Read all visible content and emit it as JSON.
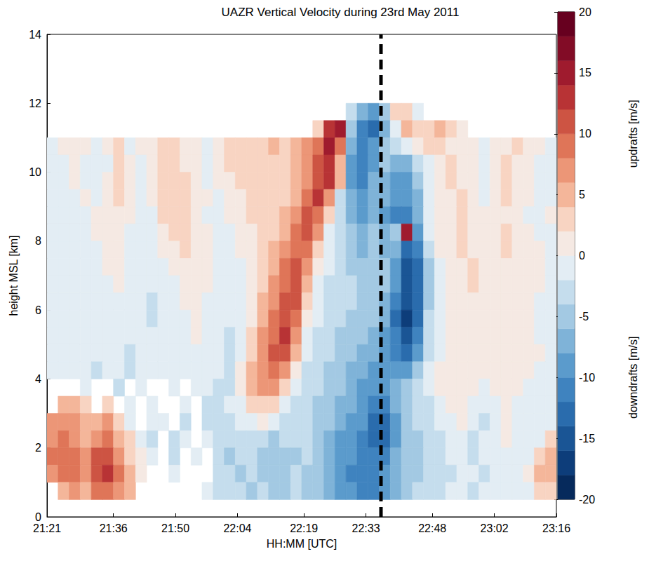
{
  "chart_data": {
    "type": "heatmap",
    "title": "UAZR Vertical Velocity during 23rd May 2011",
    "x_label": "HH:MM [UTC]",
    "y_label": "height MSL [km]",
    "xlim": [
      1281,
      1396
    ],
    "xticks": [
      {
        "value": 1281,
        "label": "21:21"
      },
      {
        "value": 1296,
        "label": "21:36"
      },
      {
        "value": 1310,
        "label": "21:50"
      },
      {
        "value": 1324,
        "label": "22:04"
      },
      {
        "value": 1339,
        "label": "22:19"
      },
      {
        "value": 1353,
        "label": "22:33"
      },
      {
        "value": 1368,
        "label": "22:48"
      },
      {
        "value": 1382,
        "label": "23:02"
      },
      {
        "value": 1396,
        "label": "23:16"
      }
    ],
    "ylim": [
      0,
      14
    ],
    "yticks": [
      0,
      2,
      4,
      6,
      8,
      10,
      12,
      14
    ],
    "grid": false,
    "x_edges": [
      1281,
      1283.5,
      1286,
      1288.5,
      1291,
      1293.5,
      1296,
      1298.5,
      1301,
      1303.5,
      1306,
      1308.5,
      1311,
      1313.5,
      1316,
      1318.5,
      1321,
      1323.5,
      1326,
      1328.5,
      1331,
      1333.5,
      1336,
      1338.5,
      1341,
      1343.5,
      1346,
      1348.5,
      1351,
      1353.5,
      1356,
      1358.5,
      1361,
      1363.5,
      1366,
      1368.5,
      1371,
      1373.5,
      1376,
      1378.5,
      1381,
      1383.5,
      1386,
      1388.5,
      1391,
      1393.5,
      1396
    ],
    "y_edges": [
      12,
      11.5,
      11,
      10.5,
      10,
      9.5,
      9,
      8.5,
      8,
      7.5,
      7,
      6.5,
      6,
      5.5,
      5,
      4.5,
      4,
      3.5,
      3,
      2.5,
      2,
      1.5,
      1,
      0.5
    ],
    "values": [
      [
        null,
        null,
        null,
        null,
        null,
        null,
        null,
        null,
        null,
        null,
        null,
        null,
        null,
        null,
        null,
        null,
        null,
        null,
        null,
        null,
        null,
        null,
        null,
        null,
        null,
        null,
        null,
        -3,
        -8,
        -10,
        -6,
        3,
        2,
        -1,
        null,
        null,
        null,
        null,
        null,
        null,
        null,
        null,
        null,
        null,
        null,
        null
      ],
      [
        null,
        null,
        null,
        null,
        null,
        null,
        null,
        null,
        null,
        null,
        null,
        null,
        null,
        null,
        null,
        null,
        null,
        null,
        null,
        null,
        null,
        null,
        null,
        null,
        3,
        12,
        14,
        -6,
        -12,
        -14,
        -8,
        -2,
        4,
        2,
        3,
        5,
        2,
        1,
        null,
        null,
        null,
        null,
        null,
        null,
        null,
        null
      ],
      [
        -1,
        0,
        1,
        0,
        -2,
        0,
        2,
        -1,
        0,
        1,
        2,
        2,
        1,
        0,
        -1,
        1,
        2,
        3,
        2,
        3,
        4,
        3,
        4,
        6,
        9,
        14,
        8,
        -8,
        -12,
        -10,
        -6,
        -3,
        -2,
        0,
        2,
        2,
        1,
        0,
        1,
        -1,
        0,
        1,
        2,
        1,
        0,
        -1
      ],
      [
        -2,
        -1,
        0,
        -1,
        -2,
        -1,
        3,
        0,
        -1,
        1,
        3,
        2,
        1,
        0,
        -1,
        0,
        2,
        2,
        3,
        3,
        2,
        3,
        4,
        6,
        10,
        12,
        4,
        -10,
        -12,
        -9,
        -6,
        -8,
        -7,
        -4,
        -1,
        1,
        2,
        1,
        0,
        -1,
        0,
        2,
        1,
        0,
        -1,
        -2
      ],
      [
        -2,
        -1,
        0,
        -1,
        -1,
        0,
        3,
        1,
        -1,
        0,
        3,
        3,
        2,
        1,
        -1,
        0,
        1,
        2,
        2,
        3,
        2,
        3,
        4,
        6,
        10,
        12,
        4,
        -9,
        -11,
        -8,
        -7,
        -10,
        -9,
        -6,
        -2,
        0,
        2,
        1,
        0,
        -1,
        1,
        3,
        1,
        0,
        -1,
        -2
      ],
      [
        -1,
        -2,
        -1,
        0,
        -1,
        1,
        2,
        0,
        -1,
        0,
        2,
        3,
        2,
        1,
        0,
        -1,
        0,
        1,
        2,
        2,
        3,
        3,
        5,
        8,
        12,
        7,
        -3,
        -8,
        -10,
        -7,
        -8,
        -10,
        -10,
        -7,
        -2,
        0,
        1,
        2,
        1,
        -1,
        0,
        2,
        1,
        0,
        -1,
        -1
      ],
      [
        -1,
        -1,
        -2,
        -1,
        0,
        1,
        1,
        0,
        -1,
        -1,
        2,
        2,
        3,
        1,
        -1,
        -1,
        0,
        1,
        2,
        2,
        3,
        4,
        7,
        10,
        9,
        2,
        -4,
        -7,
        -9,
        -7,
        -9,
        -11,
        -12,
        -8,
        -2,
        0,
        1,
        2,
        1,
        0,
        1,
        1,
        0,
        -1,
        -1,
        0
      ],
      [
        -1,
        -2,
        -1,
        -1,
        0,
        0,
        1,
        -1,
        -1,
        -1,
        1,
        2,
        2,
        1,
        0,
        -1,
        -1,
        0,
        1,
        2,
        3,
        5,
        8,
        10,
        6,
        -1,
        -4,
        -6,
        -8,
        -6,
        -8,
        -6,
        14,
        -9,
        -2,
        0,
        1,
        2,
        1,
        0,
        1,
        2,
        1,
        0,
        -1,
        -1
      ],
      [
        -1,
        -1,
        -2,
        -1,
        -1,
        0,
        0,
        -1,
        -2,
        -1,
        0,
        1,
        2,
        1,
        0,
        -1,
        -1,
        0,
        1,
        2,
        4,
        6,
        9,
        9,
        3,
        -2,
        -4,
        -5,
        -7,
        -6,
        -7,
        -8,
        -14,
        -11,
        -3,
        0,
        1,
        2,
        1,
        1,
        1,
        2,
        1,
        0,
        0,
        -1
      ],
      [
        -1,
        -1,
        -1,
        -2,
        -1,
        0,
        0,
        -1,
        -2,
        -2,
        -1,
        0,
        1,
        1,
        0,
        -1,
        -2,
        -1,
        1,
        3,
        5,
        8,
        10,
        6,
        0,
        -2,
        -3,
        -5,
        -6,
        -5,
        -6,
        -9,
        -15,
        -13,
        -5,
        -1,
        1,
        1,
        2,
        1,
        1,
        1,
        1,
        0,
        0,
        -1
      ],
      [
        -1,
        -2,
        -1,
        -2,
        -1,
        -1,
        0,
        -1,
        -2,
        -2,
        -1,
        -1,
        0,
        1,
        0,
        -1,
        -2,
        -1,
        0,
        3,
        6,
        9,
        10,
        4,
        -2,
        -3,
        -3,
        -4,
        -5,
        -5,
        -6,
        -10,
        -16,
        -14,
        -5,
        -1,
        0,
        1,
        2,
        1,
        0,
        1,
        1,
        0,
        0,
        -1
      ],
      [
        -1,
        -1,
        -2,
        -2,
        -1,
        -1,
        -1,
        -1,
        -2,
        -3,
        -2,
        -1,
        0,
        0,
        -1,
        -1,
        -2,
        -2,
        0,
        4,
        7,
        10,
        10,
        3,
        -2,
        -3,
        -4,
        -4,
        -5,
        -6,
        -7,
        -12,
        -16,
        -13,
        -5,
        -1,
        0,
        1,
        1,
        1,
        0,
        1,
        1,
        0,
        -1,
        -1
      ],
      [
        -1,
        -2,
        -2,
        -1,
        -2,
        -1,
        -1,
        -2,
        -2,
        -3,
        -2,
        -1,
        -1,
        0,
        -1,
        -2,
        -2,
        -2,
        1,
        5,
        8,
        11,
        9,
        1,
        -2,
        -4,
        -4,
        -5,
        -6,
        -6,
        -8,
        -13,
        -17,
        -13,
        -4,
        -1,
        0,
        1,
        1,
        0,
        0,
        1,
        1,
        0,
        -1,
        -1
      ],
      [
        -1,
        -1,
        -2,
        -2,
        -1,
        -1,
        -2,
        -2,
        -2,
        -2,
        -2,
        -1,
        -1,
        0,
        -1,
        -2,
        -3,
        -2,
        2,
        6,
        9,
        12,
        7,
        -1,
        -3,
        -4,
        -5,
        -5,
        -6,
        -7,
        -9,
        -12,
        -15,
        -12,
        -4,
        -1,
        0,
        1,
        1,
        0,
        0,
        0,
        1,
        0,
        -1,
        -1
      ],
      [
        -2,
        -1,
        -1,
        -2,
        -2,
        -1,
        -2,
        -3,
        -2,
        -2,
        -1,
        -1,
        -1,
        -1,
        -1,
        -2,
        -3,
        -1,
        3,
        7,
        10,
        10,
        4,
        -2,
        -3,
        -4,
        -5,
        -6,
        -7,
        -8,
        -10,
        -11,
        -13,
        -10,
        -3,
        -1,
        0,
        1,
        1,
        0,
        0,
        1,
        1,
        0,
        0,
        -1
      ],
      [
        -2,
        -2,
        -1,
        -2,
        -3,
        -2,
        -2,
        -3,
        -2,
        -2,
        -1,
        -1,
        -2,
        -1,
        -2,
        -2,
        -3,
        0,
        4,
        7,
        8,
        7,
        1,
        -3,
        -4,
        -5,
        -6,
        -7,
        -8,
        -9,
        -10,
        -10,
        -10,
        -6,
        -2,
        0,
        1,
        1,
        0,
        0,
        1,
        1,
        0,
        0,
        -1,
        -1
      ],
      [
        null,
        null,
        null,
        -2,
        null,
        null,
        -3,
        null,
        -2,
        null,
        null,
        -2,
        null,
        -2,
        -2,
        -3,
        -3,
        1,
        4,
        6,
        6,
        3,
        -2,
        -4,
        -4,
        -5,
        -6,
        -8,
        -9,
        -10,
        -10,
        -8,
        -6,
        -4,
        -2,
        0,
        1,
        1,
        0,
        -1,
        0,
        1,
        0,
        -1,
        -1,
        -1
      ],
      [
        null,
        4,
        5,
        3,
        null,
        2,
        null,
        -2,
        null,
        -2,
        null,
        null,
        -2,
        null,
        -3,
        -3,
        -2,
        -1,
        2,
        3,
        2,
        -1,
        -3,
        -4,
        -5,
        -6,
        -7,
        -8,
        -10,
        -11,
        -12,
        -8,
        -5,
        -4,
        -3,
        -1,
        0,
        0,
        -1,
        -2,
        -1,
        0,
        -1,
        -2,
        -1,
        -1
      ],
      [
        6,
        7,
        6,
        4,
        5,
        6,
        3,
        -2,
        null,
        -2,
        -2,
        null,
        -3,
        null,
        -3,
        -4,
        -3,
        -2,
        -1,
        0,
        -2,
        -3,
        -4,
        -3,
        -5,
        -6,
        -8,
        -9,
        -10,
        -13,
        -14,
        -10,
        -6,
        -4,
        -3,
        -2,
        -1,
        1,
        -2,
        -3,
        -2,
        1,
        -1,
        -2,
        -2,
        -1
      ],
      [
        7,
        8,
        7,
        5,
        7,
        8,
        5,
        2,
        -2,
        -3,
        null,
        -3,
        -2,
        null,
        -2,
        -4,
        -4,
        -3,
        -3,
        -4,
        -5,
        -4,
        -4,
        -3,
        -5,
        -7,
        -9,
        -10,
        -11,
        -13,
        -13,
        -9,
        -6,
        -5,
        -4,
        -3,
        -2,
        -1,
        -3,
        -2,
        -2,
        1,
        -2,
        -2,
        -1,
        2
      ],
      [
        8,
        9,
        8,
        6,
        10,
        11,
        6,
        3,
        0,
        -2,
        null,
        -3,
        null,
        -2,
        null,
        -3,
        -5,
        -4,
        -4,
        -5,
        -6,
        -5,
        -5,
        -4,
        -5,
        -7,
        -9,
        -10,
        -12,
        -12,
        -11,
        -8,
        -6,
        -5,
        -4,
        -3,
        -2,
        -2,
        -3,
        -2,
        -1,
        -1,
        -2,
        -1,
        2,
        5
      ],
      [
        6,
        8,
        9,
        7,
        11,
        12,
        8,
        4,
        1,
        null,
        null,
        -2,
        null,
        null,
        null,
        -3,
        -4,
        -5,
        -4,
        -5,
        -6,
        -5,
        -4,
        -5,
        -6,
        -8,
        -9,
        -11,
        -12,
        -12,
        -10,
        -8,
        -6,
        -5,
        -4,
        -3,
        -3,
        -2,
        -2,
        -3,
        -1,
        -2,
        -1,
        1,
        4,
        5
      ],
      [
        null,
        4,
        6,
        5,
        8,
        9,
        7,
        4,
        null,
        null,
        null,
        null,
        null,
        null,
        -2,
        -3,
        -4,
        -4,
        -5,
        -4,
        -5,
        -6,
        -4,
        -5,
        -6,
        -8,
        -9,
        -10,
        -12,
        -11,
        -9,
        -7,
        -5,
        -4,
        -3,
        -3,
        -2,
        -2,
        -3,
        -2,
        -2,
        -1,
        -1,
        -2,
        2,
        3
      ]
    ],
    "colorbar": {
      "range": [
        -20,
        20
      ],
      "ticks": [
        -20,
        -15,
        -10,
        -5,
        0,
        5,
        10,
        15,
        20
      ],
      "colors": [
        "#062a5c",
        "#0d3d7a",
        "#1a5595",
        "#2a6cad",
        "#3f83bf",
        "#5b9bcc",
        "#7fb3d8",
        "#a3c9e3",
        "#c5dded",
        "#e3edf4",
        "#f5e9e3",
        "#f8d4c2",
        "#f4b69a",
        "#ec9677",
        "#df7558",
        "#cd5443",
        "#b83335",
        "#9f1b2e",
        "#820c26",
        "#67001f"
      ],
      "labels": [
        "updrafts [m/s]",
        "downdrafts [m/s]"
      ]
    },
    "vline_x": 1356.4,
    "line_style": "dashed"
  }
}
